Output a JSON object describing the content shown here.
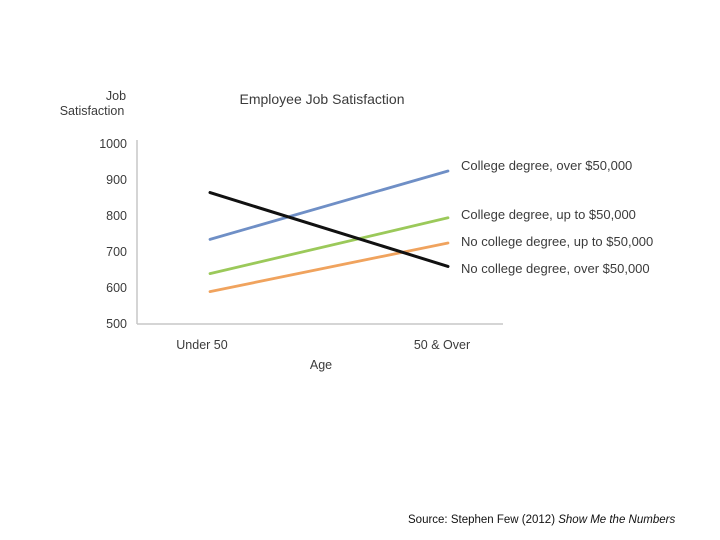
{
  "chart_data": {
    "type": "line",
    "title": "Employee Job Satisfaction",
    "xlabel": "Age",
    "ylabel_lines": [
      "Job",
      "Satisfaction"
    ],
    "ylim": [
      500,
      1000
    ],
    "yticks": [
      "1000",
      "900",
      "800",
      "700",
      "600",
      "500"
    ],
    "categories": [
      "Under 50",
      "50 & Over"
    ],
    "grid": false,
    "legend": "inline-right",
    "series": [
      {
        "name": "College degree, over $50,000",
        "values": [
          735,
          925
        ],
        "color": "#6f8fc6"
      },
      {
        "name": "College degree, up to $50,000",
        "values": [
          640,
          795
        ],
        "color": "#9bc95a"
      },
      {
        "name": "No college degree, up to $50,000",
        "values": [
          590,
          725
        ],
        "color": "#f0a35e"
      },
      {
        "name": "No college degree, over $50,000",
        "values": [
          865,
          660
        ],
        "color": "#111111"
      }
    ]
  },
  "source": {
    "prefix": "Source: Stephen Few (2012) ",
    "work": "Show Me the Numbers"
  }
}
